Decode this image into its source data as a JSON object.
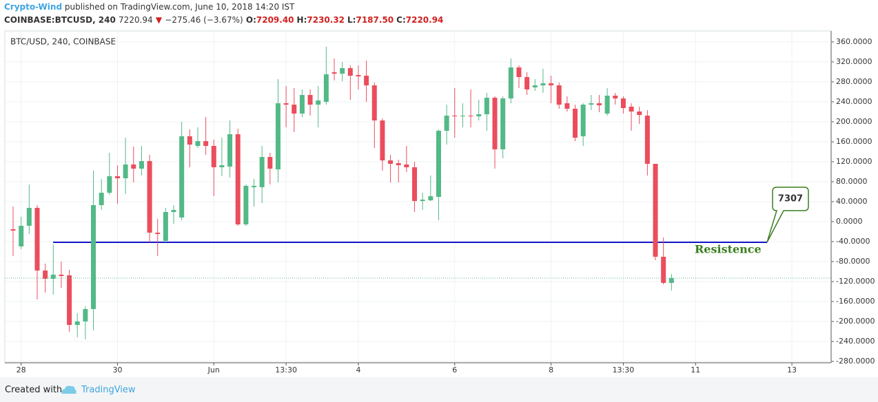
{
  "header": {
    "author": "Crypto-Wind",
    "published": "published on TradingView.com, June 10, 2018 14:20 IST",
    "symbol": "COINBASE:BTCUSD, 240",
    "price": "7220.94",
    "arrow": "▼",
    "change": "−275.46 (−3.67%)",
    "ohlc": [
      {
        "label": "O:",
        "value": "7209.40"
      },
      {
        "label": "H:",
        "value": "7230.32"
      },
      {
        "label": "L:",
        "value": "7187.50"
      },
      {
        "label": "C:",
        "value": "7220.94"
      }
    ]
  },
  "footer": {
    "created": "Created with",
    "brand": "TradingView"
  },
  "chart_data": {
    "type": "candlestick",
    "legend": "BTC/USD, 240, COINBASE",
    "up_color": "#53b987",
    "down_color": "#eb4d5c",
    "grid": true,
    "categories": [
      null,
      "28",
      null,
      null,
      null,
      null,
      null,
      null,
      null,
      null,
      null,
      null,
      null,
      "30",
      null,
      null,
      null,
      null,
      null,
      null,
      null,
      null,
      null,
      null,
      null,
      "Jun",
      null,
      null,
      null,
      null,
      null,
      null,
      null,
      null,
      "13:30",
      null,
      null,
      null,
      null,
      null,
      null,
      null,
      null,
      "4",
      null,
      null,
      null,
      null,
      null,
      null,
      null,
      null,
      null,
      null,
      null,
      "6",
      null,
      null,
      null,
      null,
      null,
      null,
      null,
      null,
      null,
      null,
      null,
      "8",
      null,
      null,
      null,
      null,
      null,
      null,
      null,
      null,
      "13:30",
      null,
      null,
      null,
      null,
      null,
      null,
      null,
      null,
      "11",
      null,
      null,
      null,
      null,
      null,
      null,
      null,
      null,
      null,
      null,
      null,
      "13",
      null,
      null,
      null,
      null
    ],
    "open": [
      -15.2,
      -49.6,
      -8.3,
      27.6,
      -97.9,
      -114.5,
      -106.2,
      -107.6,
      -206.9,
      -200.0,
      -175.1,
      33.1,
      57.9,
      91.0,
      86.9,
      114.5,
      106.2,
      121.4,
      -22.1,
      -38.6,
      19.3,
      8.3,
      171.0,
      151.7,
      161.3,
      151.7,
      108.9,
      110.3,
      175.1,
      -5.5,
      69.0,
      69.0,
      129.6,
      104.8,
      237.2,
      234.4,
      216.5,
      253.7,
      234.4,
      240.0,
      299.2,
      296.5,
      307.5,
      293.7,
      292.3,
      273.0,
      202.7,
      122.7,
      117.2,
      114.5,
      108.9,
      41.4,
      42.7,
      49.6,
      182.0,
      212.4,
      211.0,
      212.4,
      211.0,
      215.1,
      248.2,
      144.8,
      246.8,
      308.9,
      289.6,
      268.9,
      273.0,
      277.2,
      273.0,
      237.2,
      226.2,
      171.0,
      234.4,
      237.2,
      216.5,
      252.4,
      246.8,
      230.3,
      220.6,
      212.4,
      115.8,
      -70.3,
      -122.7,
      null,
      null,
      null,
      null,
      null,
      null,
      null,
      null,
      null,
      null,
      null,
      null,
      null,
      null,
      null,
      null,
      null,
      null,
      null
    ],
    "high": [
      30.3,
      9.7,
      74.5,
      33.1,
      -84.1,
      -45.5,
      -80.0,
      -96.5,
      -183.4,
      -169.6,
      102.0,
      85.5,
      137.9,
      113.1,
      168.2,
      150.3,
      151.7,
      133.8,
      5.5,
      27.6,
      33.1,
      200.0,
      184.8,
      188.9,
      209.6,
      164.1,
      168.2,
      202.7,
      186.2,
      74.5,
      85.5,
      151.7,
      137.9,
      285.5,
      271.7,
      267.5,
      264.8,
      264.8,
      271.7,
      350.3,
      326.8,
      319.9,
      313.0,
      313.0,
      322.7,
      278.6,
      206.9,
      133.8,
      124.1,
      151.7,
      120.0,
      57.9,
      92.4,
      184.8,
      234.4,
      267.5,
      237.2,
      264.8,
      244.1,
      257.9,
      251.0,
      251.0,
      326.8,
      313.0,
      299.2,
      285.5,
      306.1,
      292.3,
      278.6,
      251.0,
      234.4,
      237.2,
      253.7,
      253.7,
      267.5,
      257.9,
      251.0,
      237.2,
      230.3,
      223.4,
      115.8,
      -31.7,
      -104.8,
      null,
      null,
      null,
      null,
      null,
      null,
      null,
      null,
      null,
      null,
      null,
      null,
      null,
      null,
      null,
      null,
      null,
      null,
      null
    ],
    "low": [
      -69.0,
      -55.2,
      -24.8,
      -155.8,
      -142.0,
      -146.2,
      -132.4,
      -220.6,
      -231.7,
      -235.8,
      -217.9,
      23.4,
      53.8,
      35.9,
      55.2,
      78.6,
      92.4,
      -41.4,
      -69.0,
      -41.4,
      -4.1,
      2.8,
      108.9,
      147.6,
      133.8,
      51.0,
      91.0,
      88.3,
      -8.3,
      -8.3,
      30.3,
      37.2,
      74.5,
      78.6,
      188.9,
      179.3,
      209.6,
      212.4,
      188.9,
      234.4,
      282.7,
      281.3,
      244.1,
      264.8,
      239.9,
      147.6,
      102.0,
      78.6,
      78.6,
      99.3,
      19.3,
      23.4,
      41.4,
      2.8,
      154.4,
      168.2,
      188.9,
      188.9,
      202.7,
      182.0,
      106.2,
      126.9,
      237.2,
      267.5,
      253.7,
      262.0,
      257.9,
      237.2,
      226.2,
      220.6,
      161.3,
      151.7,
      223.4,
      219.3,
      212.4,
      234.4,
      216.5,
      182.0,
      195.8,
      92.4,
      -77.2,
      -125.5,
      -137.9,
      null,
      null,
      null,
      null,
      null,
      null,
      null,
      null,
      null,
      null,
      null,
      null,
      null,
      null,
      null,
      null,
      null,
      null,
      null
    ],
    "close": [
      -17.9,
      -8.3,
      27.6,
      -97.9,
      -114.5,
      -106.2,
      -108.9,
      -206.9,
      -200.0,
      -175.1,
      33.1,
      57.9,
      91.0,
      86.9,
      114.5,
      106.2,
      121.4,
      -22.1,
      -24.8,
      19.3,
      23.4,
      171.0,
      154.4,
      161.3,
      151.7,
      108.9,
      113.1,
      175.1,
      -5.5,
      71.7,
      71.7,
      129.6,
      106.2,
      237.2,
      234.4,
      216.5,
      253.7,
      234.4,
      242.7,
      295.1,
      296.5,
      307.5,
      292.3,
      291.0,
      273.0,
      202.7,
      122.7,
      115.8,
      113.1,
      108.9,
      41.4,
      44.1,
      51.0,
      182.0,
      212.4,
      211.0,
      212.4,
      211.0,
      215.1,
      248.2,
      144.8,
      246.8,
      308.9,
      289.6,
      264.8,
      273.0,
      277.2,
      273.0,
      234.4,
      226.2,
      168.2,
      234.4,
      237.2,
      233.1,
      252.4,
      246.8,
      227.5,
      220.6,
      213.7,
      115.8,
      -70.3,
      -122.7,
      -113.1,
      null,
      null,
      null,
      null,
      null,
      null,
      null,
      null,
      null,
      null,
      null,
      null,
      null,
      null,
      null,
      null,
      null,
      null,
      null
    ],
    "ylim": [
      -282.7,
      379.2
    ],
    "yticks": [
      {
        "value": 360,
        "label": "360.0000"
      },
      {
        "value": 320,
        "label": "320.0000"
      },
      {
        "value": 280,
        "label": "280.0000"
      },
      {
        "value": 240,
        "label": "240.0000"
      },
      {
        "value": 200,
        "label": "200.0000"
      },
      {
        "value": 160,
        "label": "160.0000"
      },
      {
        "value": 120,
        "label": "120.0000"
      },
      {
        "value": 80,
        "label": "80.0000"
      },
      {
        "value": 40,
        "label": "40.0000"
      },
      {
        "value": 0,
        "label": "0.0000"
      },
      {
        "value": -40,
        "label": "-40.0000"
      },
      {
        "value": -80,
        "label": "-80.0000"
      },
      {
        "value": -120,
        "label": "-120.0000"
      },
      {
        "value": -160,
        "label": "-160.0000"
      },
      {
        "value": -200,
        "label": "-200.0000"
      },
      {
        "value": -240,
        "label": "-240.0000"
      },
      {
        "value": -280,
        "label": "-280.0000"
      }
    ],
    "lines": [
      {
        "value": -41.4,
        "color": "#1414c8"
      }
    ],
    "annotations": {
      "resistance": "Resistence",
      "callout": "7307"
    }
  }
}
